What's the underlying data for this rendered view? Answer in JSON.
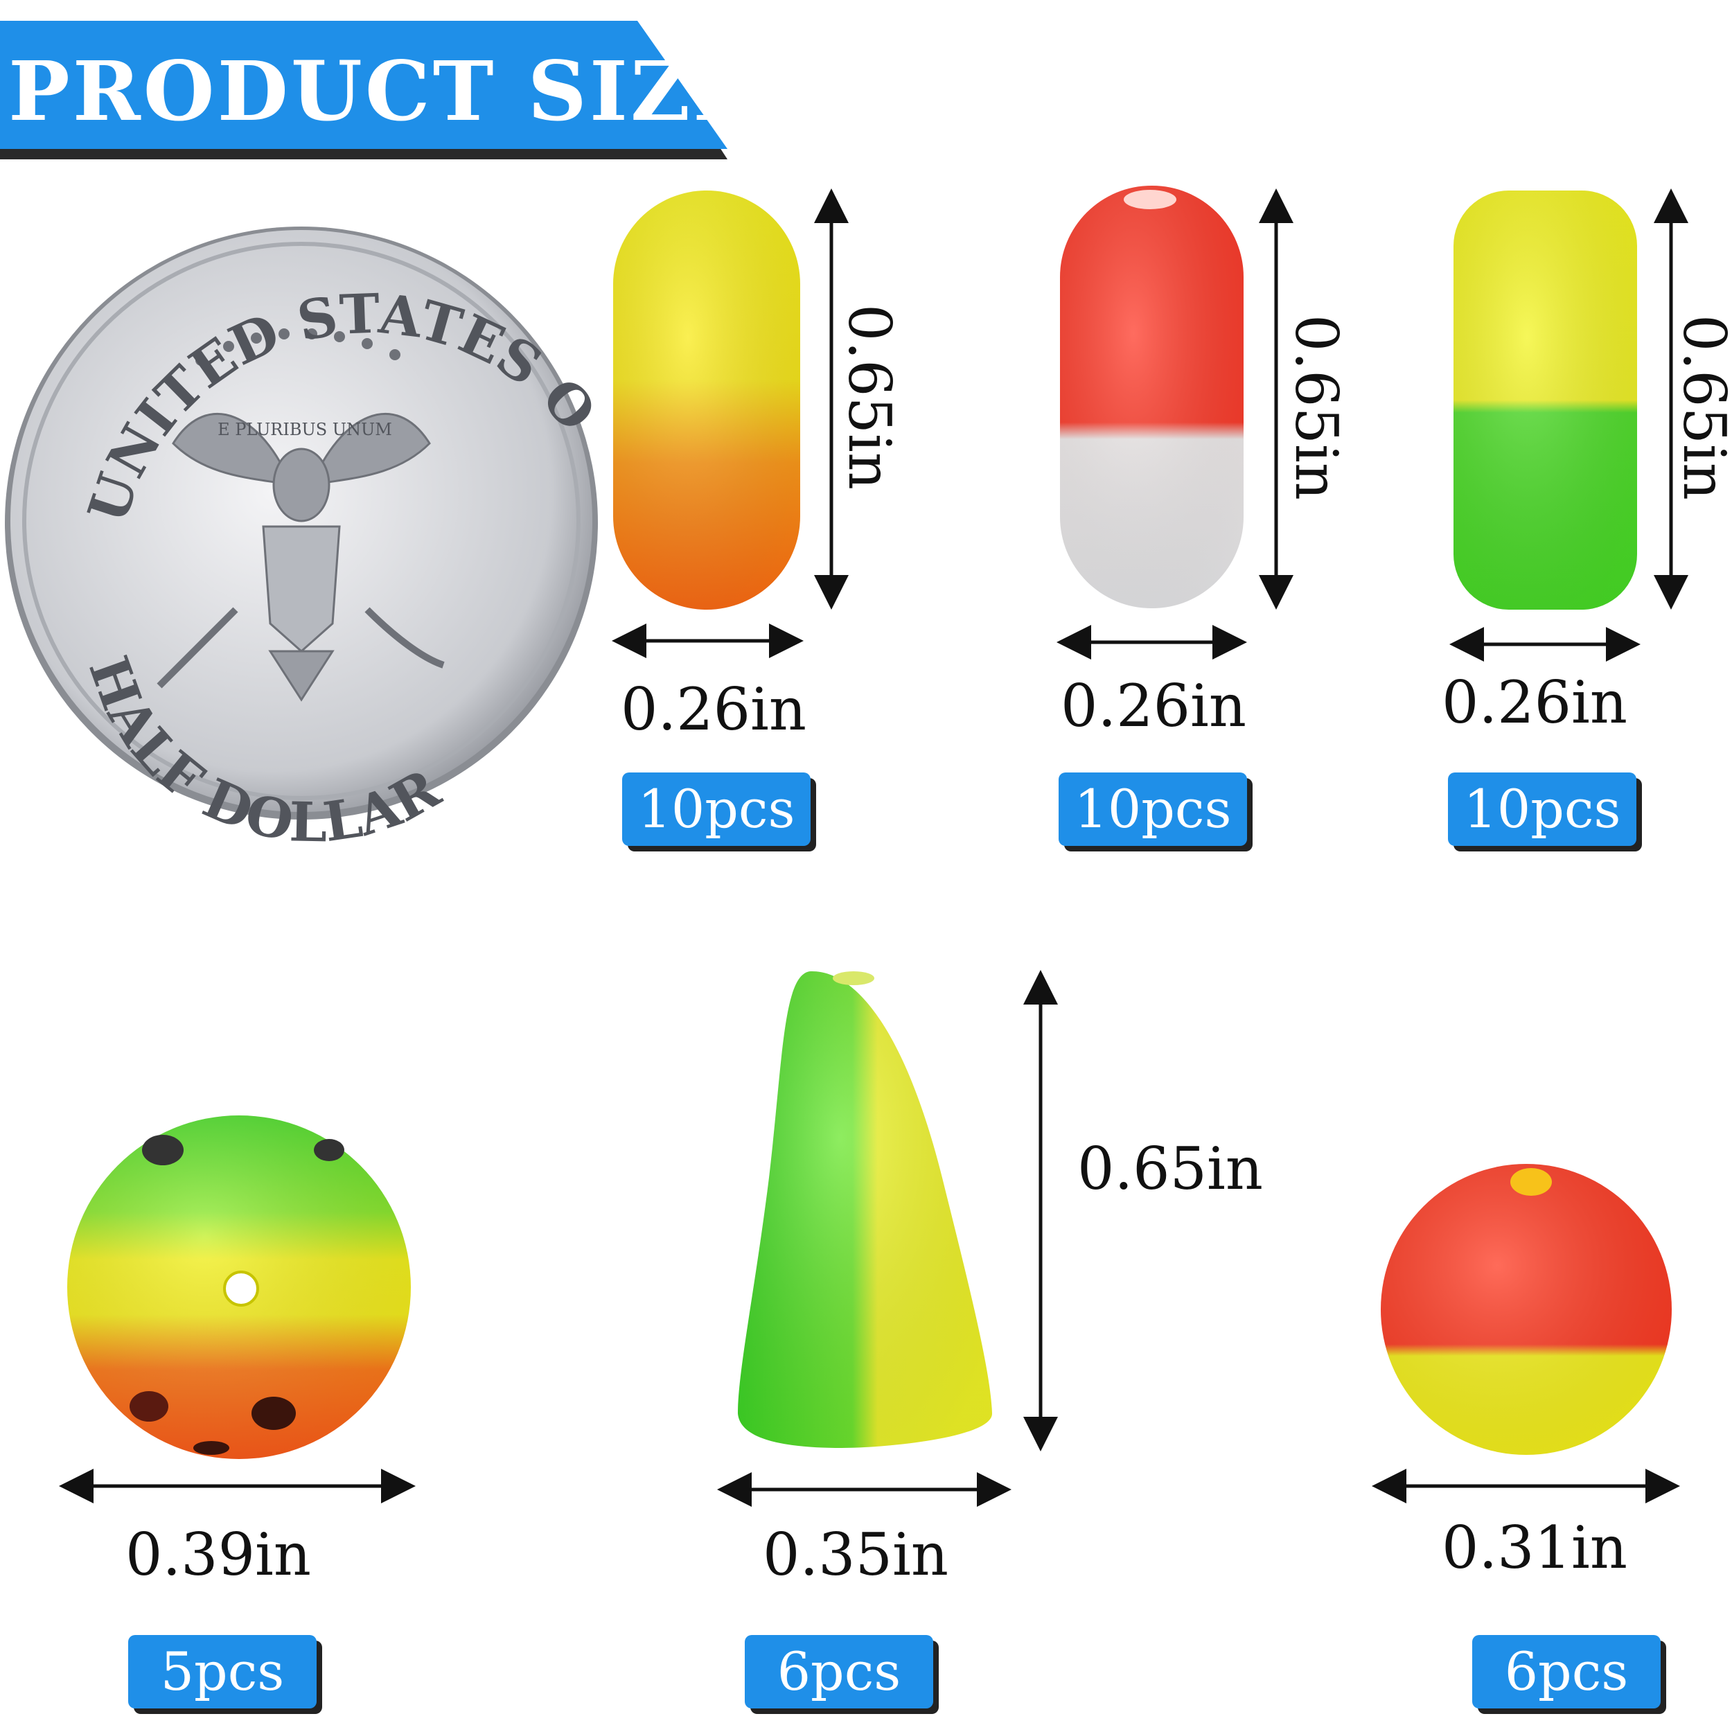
{
  "banner": {
    "title": "PRODUCT SIZE",
    "color": "#1f8fe8"
  },
  "coin": {
    "top_text": "UNITED STATES OF AMERICA",
    "bottom_text": "HALF DOLLAR",
    "motto": "E PLURIBUS UNUM"
  },
  "items": [
    {
      "height_label": "0.65in",
      "width_label": "0.26in",
      "count": "10pcs",
      "colors": [
        "#f7f21a",
        "#ff7a12"
      ]
    },
    {
      "height_label": "0.65in",
      "width_label": "0.26in",
      "count": "10pcs",
      "colors": [
        "#ff3b2a",
        "#eeeeee"
      ]
    },
    {
      "height_label": "0.65in",
      "width_label": "0.26in",
      "count": "10pcs",
      "colors": [
        "#f6f61e",
        "#4fe02a"
      ]
    },
    {
      "width_label": "0.39in",
      "count": "5pcs",
      "colors": [
        "#5ee82a",
        "#f7f21a",
        "#ff6a1a"
      ]
    },
    {
      "height_label": "0.65in",
      "width_label": "0.35in",
      "count": "6pcs",
      "colors": [
        "#4fe02a",
        "#eef52a"
      ]
    },
    {
      "width_label": "0.31in",
      "count": "6pcs",
      "colors": [
        "#ff3a22",
        "#f7f21a"
      ]
    }
  ]
}
